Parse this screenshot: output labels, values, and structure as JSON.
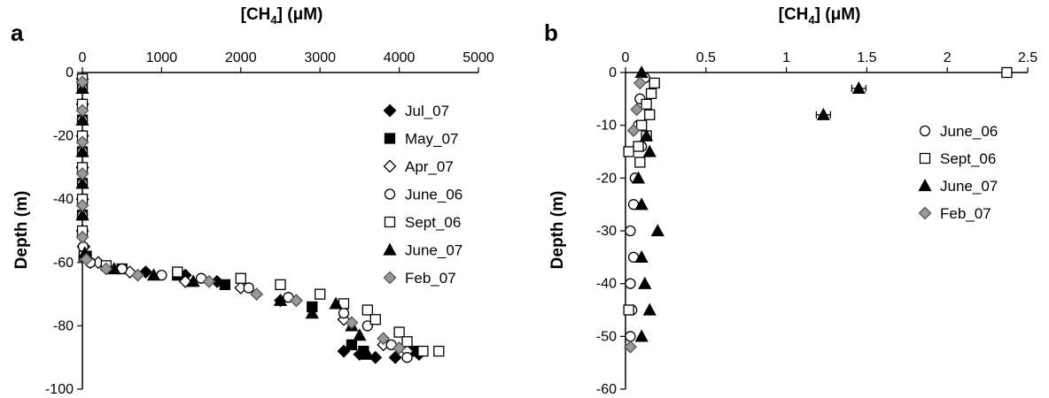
{
  "chart_data": [
    {
      "type": "scatter",
      "panel_label": "a",
      "xlabel": "[CH4] (μM)",
      "xlabel_main": "[CH",
      "xlabel_sub": "4",
      "xlabel_rest": "] (μM)",
      "ylabel": "Depth (m)",
      "xlim": [
        0,
        5000
      ],
      "ylim": [
        -100,
        0
      ],
      "x_ticks": [
        0,
        1000,
        2000,
        3000,
        4000,
        5000
      ],
      "y_ticks": [
        0,
        -20,
        -40,
        -60,
        -80,
        -100
      ],
      "x_axis_position": "top",
      "grid": false,
      "legend_position": "right",
      "series": [
        {
          "name": "Jul_07",
          "marker": "diamond",
          "fill": "#000000",
          "points": [
            [
              0,
              -10
            ],
            [
              0,
              -20
            ],
            [
              0,
              -30
            ],
            [
              0,
              -40
            ],
            [
              10,
              -55
            ],
            [
              100,
              -60
            ],
            [
              800,
              -63
            ],
            [
              1300,
              -64
            ],
            [
              1700,
              -66
            ],
            [
              2500,
              -72
            ],
            [
              3300,
              -88
            ],
            [
              3500,
              -89
            ],
            [
              3700,
              -90
            ],
            [
              3950,
              -90
            ],
            [
              4250,
              -89
            ]
          ]
        },
        {
          "name": "May_07",
          "marker": "square",
          "fill": "#000000",
          "points": [
            [
              0,
              -5
            ],
            [
              0,
              -15
            ],
            [
              0,
              -25
            ],
            [
              0,
              -35
            ],
            [
              0,
              -45
            ],
            [
              50,
              -58
            ],
            [
              500,
              -62
            ],
            [
              1200,
              -64
            ],
            [
              1800,
              -67
            ],
            [
              2900,
              -74
            ],
            [
              3400,
              -86
            ],
            [
              3550,
              -88
            ],
            [
              4200,
              -88
            ]
          ]
        },
        {
          "name": "Apr_07",
          "marker": "diamond",
          "fill": "#ffffff",
          "points": [
            [
              0,
              -2
            ],
            [
              0,
              -10
            ],
            [
              0,
              -20
            ],
            [
              0,
              -30
            ],
            [
              0,
              -40
            ],
            [
              0,
              -50
            ],
            [
              20,
              -55
            ],
            [
              200,
              -60
            ],
            [
              600,
              -63
            ],
            [
              1300,
              -66
            ],
            [
              2000,
              -68
            ],
            [
              2700,
              -72
            ],
            [
              3300,
              -78
            ],
            [
              3800,
              -86
            ],
            [
              4100,
              -88
            ]
          ]
        },
        {
          "name": "June_06",
          "marker": "circle",
          "fill": "#ffffff",
          "points": [
            [
              0,
              -5
            ],
            [
              0,
              -15
            ],
            [
              0,
              -25
            ],
            [
              0,
              -35
            ],
            [
              0,
              -45
            ],
            [
              10,
              -55
            ],
            [
              100,
              -60
            ],
            [
              500,
              -62
            ],
            [
              1000,
              -64
            ],
            [
              1500,
              -65
            ],
            [
              2100,
              -68
            ],
            [
              2600,
              -71
            ],
            [
              3300,
              -76
            ],
            [
              3600,
              -80
            ],
            [
              3900,
              -86
            ],
            [
              4100,
              -90
            ]
          ]
        },
        {
          "name": "Sept_06",
          "marker": "square",
          "fill": "#ffffff",
          "points": [
            [
              0,
              -2
            ],
            [
              0,
              -10
            ],
            [
              0,
              -20
            ],
            [
              0,
              -30
            ],
            [
              0,
              -40
            ],
            [
              0,
              -50
            ],
            [
              20,
              -58
            ],
            [
              300,
              -61
            ],
            [
              1200,
              -63
            ],
            [
              2000,
              -65
            ],
            [
              2500,
              -67
            ],
            [
              3000,
              -70
            ],
            [
              3300,
              -73
            ],
            [
              3600,
              -75
            ],
            [
              3700,
              -78
            ],
            [
              4000,
              -82
            ],
            [
              4100,
              -85
            ],
            [
              4300,
              -88
            ],
            [
              4500,
              -88
            ]
          ]
        },
        {
          "name": "June_07",
          "marker": "triangle",
          "fill": "#000000",
          "points": [
            [
              0,
              -5
            ],
            [
              0,
              -15
            ],
            [
              0,
              -25
            ],
            [
              0,
              -35
            ],
            [
              0,
              -45
            ],
            [
              30,
              -57
            ],
            [
              400,
              -62
            ],
            [
              900,
              -64
            ],
            [
              1400,
              -66
            ],
            [
              2500,
              -72
            ],
            [
              2900,
              -76
            ],
            [
              3200,
              -73
            ],
            [
              3400,
              -80
            ],
            [
              3500,
              -83
            ],
            [
              3600,
              -89
            ]
          ]
        },
        {
          "name": "Feb_07",
          "marker": "diamond",
          "fill": "#999999",
          "points": [
            [
              0,
              -3
            ],
            [
              0,
              -12
            ],
            [
              0,
              -22
            ],
            [
              0,
              -32
            ],
            [
              0,
              -42
            ],
            [
              0,
              -52
            ],
            [
              50,
              -59
            ],
            [
              300,
              -62
            ],
            [
              700,
              -64
            ],
            [
              1600,
              -66
            ],
            [
              2200,
              -70
            ],
            [
              2700,
              -72
            ],
            [
              3400,
              -79
            ],
            [
              3800,
              -84
            ],
            [
              4000,
              -87
            ]
          ]
        }
      ]
    },
    {
      "type": "scatter",
      "panel_label": "b",
      "xlabel": "[CH4] (μM)",
      "xlabel_main": "[CH",
      "xlabel_sub": "4",
      "xlabel_rest": "] (μM)",
      "ylabel": "Depth (m)",
      "xlim": [
        0,
        2.5
      ],
      "ylim": [
        -60,
        0
      ],
      "x_ticks": [
        "0",
        "0.5",
        "1",
        "1.5",
        "2",
        "2.5"
      ],
      "y_ticks": [
        0,
        -10,
        -20,
        -30,
        -40,
        -50,
        -60
      ],
      "x_axis_position": "top",
      "grid": false,
      "legend_position": "right",
      "series": [
        {
          "name": "June_06",
          "marker": "circle",
          "fill": "#ffffff",
          "points": [
            [
              0.12,
              -1
            ],
            [
              0.09,
              -5
            ],
            [
              0.08,
              -10
            ],
            [
              0.1,
              -14
            ],
            [
              0.06,
              -20
            ],
            [
              0.05,
              -25
            ],
            [
              0.03,
              -30
            ],
            [
              0.05,
              -35
            ],
            [
              0.03,
              -40
            ],
            [
              0.04,
              -45
            ],
            [
              0.03,
              -50
            ]
          ]
        },
        {
          "name": "Sept_06",
          "marker": "square",
          "fill": "#ffffff",
          "points": [
            [
              2.37,
              0
            ],
            [
              0.18,
              -2
            ],
            [
              0.16,
              -4
            ],
            [
              0.13,
              -6
            ],
            [
              0.15,
              -8
            ],
            [
              0.1,
              -10
            ],
            [
              0.13,
              -12
            ],
            [
              0.08,
              -14
            ],
            [
              0.02,
              -15
            ],
            [
              0.09,
              -17
            ],
            [
              0.02,
              -45
            ]
          ]
        },
        {
          "name": "June_07",
          "marker": "triangle",
          "fill": "#000000",
          "error_bars": true,
          "points": [
            [
              0.1,
              0
            ],
            [
              1.45,
              -3
            ],
            [
              1.23,
              -8
            ],
            [
              0.13,
              -12
            ],
            [
              0.15,
              -15
            ],
            [
              0.08,
              -20
            ],
            [
              0.1,
              -25
            ],
            [
              0.2,
              -30
            ],
            [
              0.1,
              -35
            ],
            [
              0.12,
              -40
            ],
            [
              0.15,
              -45
            ],
            [
              0.1,
              -50
            ]
          ]
        },
        {
          "name": "Feb_07",
          "marker": "diamond",
          "fill": "#999999",
          "points": [
            [
              0.09,
              -2
            ],
            [
              0.07,
              -7
            ],
            [
              0.05,
              -11
            ],
            [
              0.03,
              -52
            ]
          ]
        }
      ]
    }
  ]
}
